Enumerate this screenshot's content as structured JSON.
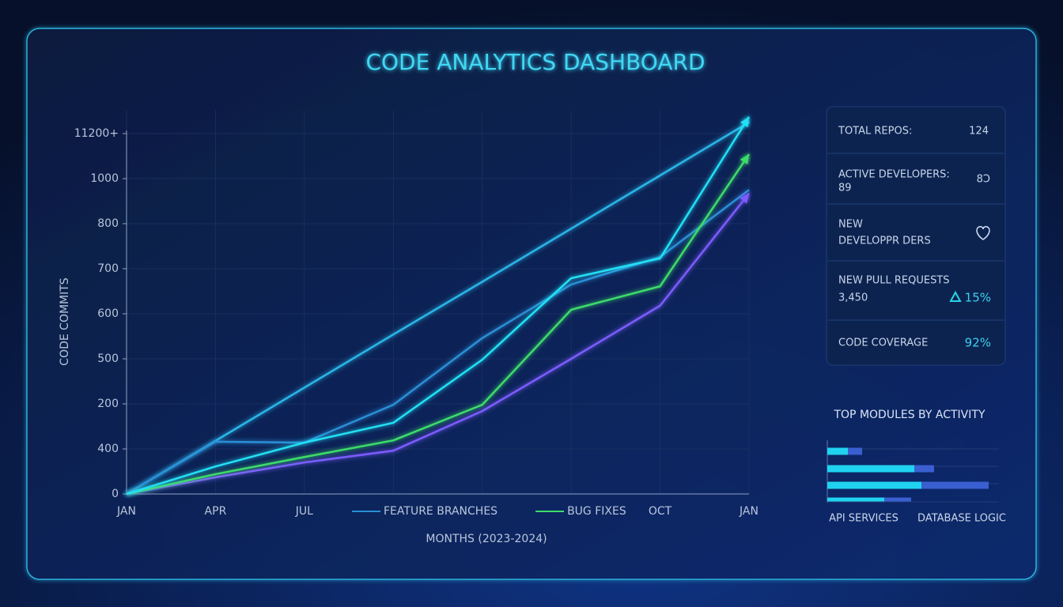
{
  "title": "CODE ANALYTICS DASHBOARD",
  "chart_data": [
    {
      "type": "line",
      "y_label": "CODE COMMITS",
      "x_label": "MONTHS (2023-2024)",
      "categories": [
        "JAN",
        "APR",
        "JUL",
        null,
        null,
        null,
        "OCT",
        "JAN"
      ],
      "ylim": [
        0,
        900
      ],
      "yticks": [
        0,
        {
          "value": 100,
          "label": "400"
        },
        {
          "value": 200,
          "label": "200"
        },
        {
          "value": 300,
          "label": "500"
        },
        {
          "value": 400,
          "label": "600"
        },
        {
          "value": 500,
          "label": "700"
        },
        {
          "value": 600,
          "label": "800"
        },
        {
          "value": 700,
          "label": "1000"
        },
        {
          "value": 800,
          "label": "11200+"
        }
      ],
      "grid": true,
      "series": [
        {
          "color": "#29b6e8",
          "values": [
            0,
            118,
            236,
            354,
            471,
            589,
            707,
            825
          ]
        },
        {
          "name": "FEATURE BRANCHES",
          "color": "#2a8fd6",
          "values": [
            0,
            116,
            114,
            198,
            346,
            465,
            526,
            675
          ]
        },
        {
          "color": "#7b5cff",
          "arrow": true,
          "values": [
            0,
            37,
            70,
            96,
            184,
            300,
            418,
            667
          ]
        },
        {
          "name": "BUG FIXES",
          "color": "#3ddc6a",
          "arrow": true,
          "values": [
            0,
            44,
            82,
            119,
            198,
            409,
            461,
            754
          ]
        },
        {
          "color": "#22e0f5",
          "arrow": true,
          "values": [
            0,
            61,
            114,
            158,
            298,
            479,
            523,
            837
          ]
        }
      ]
    },
    {
      "type": "hbar",
      "title": "TOP MODULES BY ACTIVITY",
      "axis_labels": [
        "API SERVICES",
        "DATABASE LOGIC"
      ],
      "xlim": [
        0,
        220
      ],
      "series": [
        {
          "color": "#1fd3f0",
          "values": [
            26,
            110,
            119,
            72
          ]
        },
        {
          "color": "#3a5fd0",
          "values": [
            18,
            25,
            85,
            34
          ]
        }
      ]
    }
  ],
  "stats": [
    {
      "label": "TOTAL REPOS:",
      "value": "124"
    },
    {
      "label": "ACTIVE DEVELOPERS:",
      "value": "89",
      "icon": "8Ↄ"
    },
    {
      "label": "NEW",
      "sub": "DEVELOPPR DERS"
    },
    {
      "label": "NEW PULL REQUESTS",
      "value": "3,450",
      "change": "15%"
    },
    {
      "label": "CODE COVERAGE",
      "value": "92%"
    }
  ]
}
